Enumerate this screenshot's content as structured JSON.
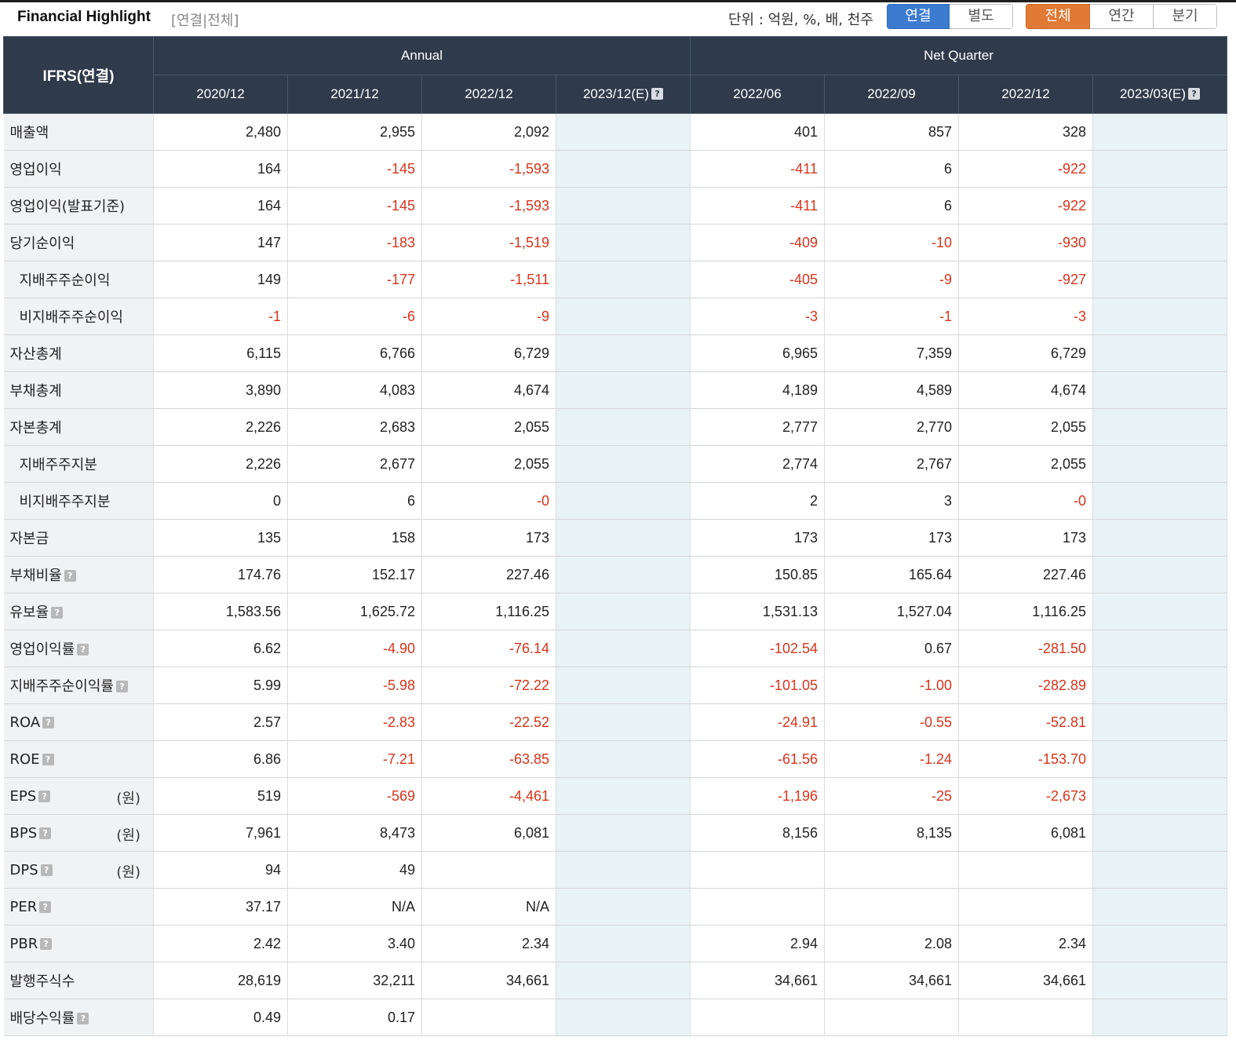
{
  "header": {
    "title": "Financial Highlight",
    "subtitle": "[연결|전체]",
    "unit_text": "단위 : 억원, %, 배, 천주",
    "basis_options": [
      {
        "label": "연결",
        "selected": true
      },
      {
        "label": "별도",
        "selected": false
      }
    ],
    "period_options": [
      {
        "label": "전체",
        "selected": true
      },
      {
        "label": "연간",
        "selected": false
      },
      {
        "label": "분기",
        "selected": false
      }
    ]
  },
  "table": {
    "corner_label": "IFRS(연결)",
    "groups": [
      "Annual",
      "Net Quarter"
    ],
    "columns": [
      "2020/12",
      "2021/12",
      "2022/12",
      "2023/12(E)",
      "2022/06",
      "2022/09",
      "2022/12",
      "2023/03(E)"
    ],
    "rows": [
      {
        "label": "매출액",
        "values": [
          "2,480",
          "2,955",
          "2,092",
          "",
          "401",
          "857",
          "328",
          ""
        ]
      },
      {
        "label": "영업이익",
        "values": [
          "164",
          "-145",
          "-1,593",
          "",
          "-411",
          "6",
          "-922",
          ""
        ]
      },
      {
        "label": "영업이익(발표기준)",
        "values": [
          "164",
          "-145",
          "-1,593",
          "",
          "-411",
          "6",
          "-922",
          ""
        ]
      },
      {
        "label": "당기순이익",
        "values": [
          "147",
          "-183",
          "-1,519",
          "",
          "-409",
          "-10",
          "-930",
          ""
        ]
      },
      {
        "label": "지배주주순이익",
        "sub": true,
        "values": [
          "149",
          "-177",
          "-1,511",
          "",
          "-405",
          "-9",
          "-927",
          ""
        ]
      },
      {
        "label": "비지배주주순이익",
        "sub": true,
        "values": [
          "-1",
          "-6",
          "-9",
          "",
          "-3",
          "-1",
          "-3",
          ""
        ]
      },
      {
        "label": "자산총계",
        "values": [
          "6,115",
          "6,766",
          "6,729",
          "",
          "6,965",
          "7,359",
          "6,729",
          ""
        ]
      },
      {
        "label": "부채총계",
        "values": [
          "3,890",
          "4,083",
          "4,674",
          "",
          "4,189",
          "4,589",
          "4,674",
          ""
        ]
      },
      {
        "label": "자본총계",
        "values": [
          "2,226",
          "2,683",
          "2,055",
          "",
          "2,777",
          "2,770",
          "2,055",
          ""
        ]
      },
      {
        "label": "지배주주지분",
        "sub": true,
        "values": [
          "2,226",
          "2,677",
          "2,055",
          "",
          "2,774",
          "2,767",
          "2,055",
          ""
        ]
      },
      {
        "label": "비지배주주지분",
        "sub": true,
        "values": [
          "0",
          "6",
          "-0",
          "",
          "2",
          "3",
          "-0",
          ""
        ]
      },
      {
        "label": "자본금",
        "values": [
          "135",
          "158",
          "173",
          "",
          "173",
          "173",
          "173",
          ""
        ]
      },
      {
        "label": "부채비율",
        "help": true,
        "values": [
          "174.76",
          "152.17",
          "227.46",
          "",
          "150.85",
          "165.64",
          "227.46",
          ""
        ]
      },
      {
        "label": "유보율",
        "help": true,
        "values": [
          "1,583.56",
          "1,625.72",
          "1,116.25",
          "",
          "1,531.13",
          "1,527.04",
          "1,116.25",
          ""
        ]
      },
      {
        "label": "영업이익률",
        "help": true,
        "values": [
          "6.62",
          "-4.90",
          "-76.14",
          "",
          "-102.54",
          "0.67",
          "-281.50",
          ""
        ]
      },
      {
        "label": "지배주주순이익률",
        "help": true,
        "values": [
          "5.99",
          "-5.98",
          "-72.22",
          "",
          "-101.05",
          "-1.00",
          "-282.89",
          ""
        ]
      },
      {
        "label": "ROA",
        "help": true,
        "values": [
          "2.57",
          "-2.83",
          "-22.52",
          "",
          "-24.91",
          "-0.55",
          "-52.81",
          ""
        ]
      },
      {
        "label": "ROE",
        "help": true,
        "values": [
          "6.86",
          "-7.21",
          "-63.85",
          "",
          "-61.56",
          "-1.24",
          "-153.70",
          ""
        ]
      },
      {
        "label": "EPS",
        "help": true,
        "unit": "(원)",
        "values": [
          "519",
          "-569",
          "-4,461",
          "",
          "-1,196",
          "-25",
          "-2,673",
          ""
        ]
      },
      {
        "label": "BPS",
        "help": true,
        "unit": "(원)",
        "values": [
          "7,961",
          "8,473",
          "6,081",
          "",
          "8,156",
          "8,135",
          "6,081",
          ""
        ]
      },
      {
        "label": "DPS",
        "help": true,
        "unit": "(원)",
        "values": [
          "94",
          "49",
          "",
          "",
          "",
          "",
          "",
          ""
        ]
      },
      {
        "label": "PER",
        "help": true,
        "values": [
          "37.17",
          "N/A",
          "N/A",
          "",
          "",
          "",
          "",
          ""
        ]
      },
      {
        "label": "PBR",
        "help": true,
        "values": [
          "2.42",
          "3.40",
          "2.34",
          "",
          "2.94",
          "2.08",
          "2.34",
          ""
        ]
      },
      {
        "label": "발행주식수",
        "values": [
          "28,619",
          "32,211",
          "34,661",
          "",
          "34,661",
          "34,661",
          "34,661",
          ""
        ]
      },
      {
        "label": "배당수익률",
        "help": true,
        "values": [
          "0.49",
          "0.17",
          "",
          "",
          "",
          "",
          "",
          ""
        ]
      }
    ]
  },
  "colors": {
    "header_bg": "#2f3b4a",
    "negative": "#d8341c",
    "estimate_bg": "#e8f3f5",
    "label_bg": "#f1f2f4",
    "toggle_blue": "#3b7bd0",
    "toggle_orange": "#e07a35"
  },
  "icons": {
    "help": "question-mark-icon"
  }
}
